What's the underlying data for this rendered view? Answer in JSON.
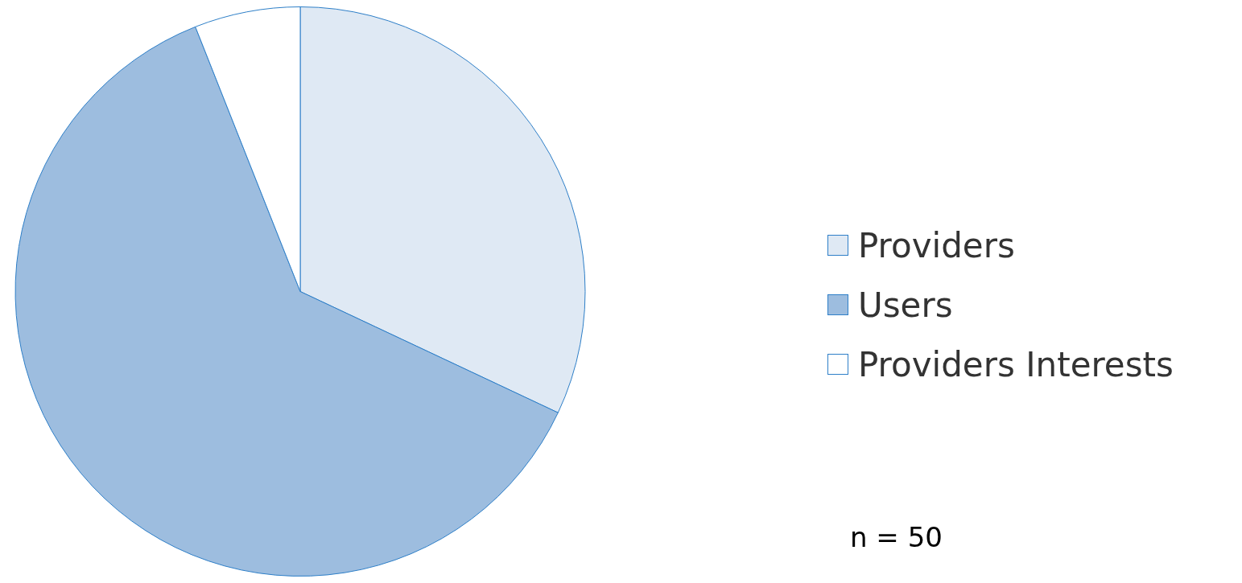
{
  "chart_data": {
    "type": "pie",
    "categories": [
      "Providers",
      "Users",
      "Providers Interests"
    ],
    "values": [
      32,
      62,
      6
    ],
    "colors": [
      "#dfe9f4",
      "#9dbddf",
      "#ffffff"
    ],
    "legend": "right",
    "annotations": [
      "n = 50"
    ]
  }
}
